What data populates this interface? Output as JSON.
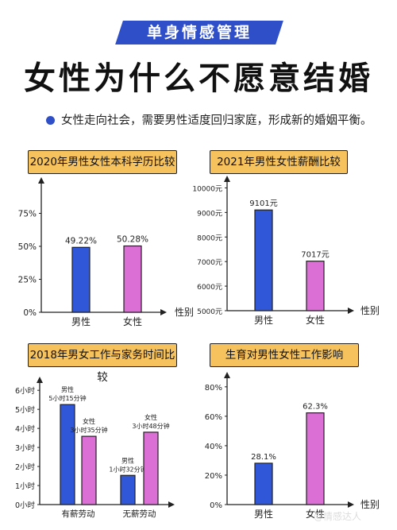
{
  "header": {
    "badge": "单身情感管理",
    "title": "女性为什么不愿意结婚"
  },
  "intro": "女性走向社会，需要男性适度回归家庭，形成新的婚姻平衡。",
  "colors": {
    "blue": "#2f57d8",
    "pink": "#dc6fd6",
    "accent": "#f6c25d",
    "banner": "#2f4fc9"
  },
  "watermark": "@情感达人",
  "chart_data": [
    {
      "type": "bar",
      "title": "2020年男性女性本科学历比较",
      "xlabel": "性别",
      "categories": [
        "男性",
        "女性"
      ],
      "values": [
        49.22,
        50.28
      ],
      "value_labels": [
        "49.22%",
        "50.28%"
      ],
      "yticks": [
        "0%",
        "25%",
        "50%",
        "75%"
      ],
      "ytick_values": [
        0,
        25,
        50,
        75
      ],
      "ylim": [
        0,
        100
      ]
    },
    {
      "type": "bar",
      "title": "2021年男性女性薪酬比较",
      "xlabel": "性别",
      "categories": [
        "男性",
        "女性"
      ],
      "values": [
        9101,
        7017
      ],
      "value_labels": [
        "9101元",
        "7017元"
      ],
      "yticks": [
        "5000元",
        "6000元",
        "7000元",
        "8000元",
        "9000元",
        "10000元"
      ],
      "ytick_values": [
        5000,
        6000,
        7000,
        8000,
        9000,
        10000
      ],
      "ylim": [
        5000,
        10500
      ]
    },
    {
      "type": "bar",
      "title": "2018年男女工作与家务时间比较",
      "categories": [
        "有薪劳动",
        "无薪劳动"
      ],
      "series": [
        {
          "name": "男性",
          "values": [
            5.25,
            1.533
          ],
          "value_labels": [
            "男性\n5小时15分钟",
            "男性\n1小时32分钟"
          ]
        },
        {
          "name": "女性",
          "values": [
            3.583,
            3.8
          ],
          "value_labels": [
            "女性\n3小时35分钟",
            "女性\n3小时48分钟"
          ]
        }
      ],
      "yticks": [
        "0小时",
        "1小时",
        "2小时",
        "3小时",
        "4小时",
        "5小时",
        "6小时"
      ],
      "ytick_values": [
        0,
        1,
        2,
        3,
        4,
        5,
        6
      ],
      "ylim": [
        0,
        6.3
      ]
    },
    {
      "type": "bar",
      "title": "生育对男性女性工作影响",
      "xlabel": "性别",
      "categories": [
        "男性",
        "女性"
      ],
      "values": [
        28.1,
        62.3
      ],
      "value_labels": [
        "28.1%",
        "62.3%"
      ],
      "yticks": [
        "0%",
        "20%",
        "40%",
        "60%",
        "80%"
      ],
      "ytick_values": [
        0,
        20,
        40,
        60,
        80
      ],
      "ylim": [
        0,
        88
      ]
    }
  ]
}
